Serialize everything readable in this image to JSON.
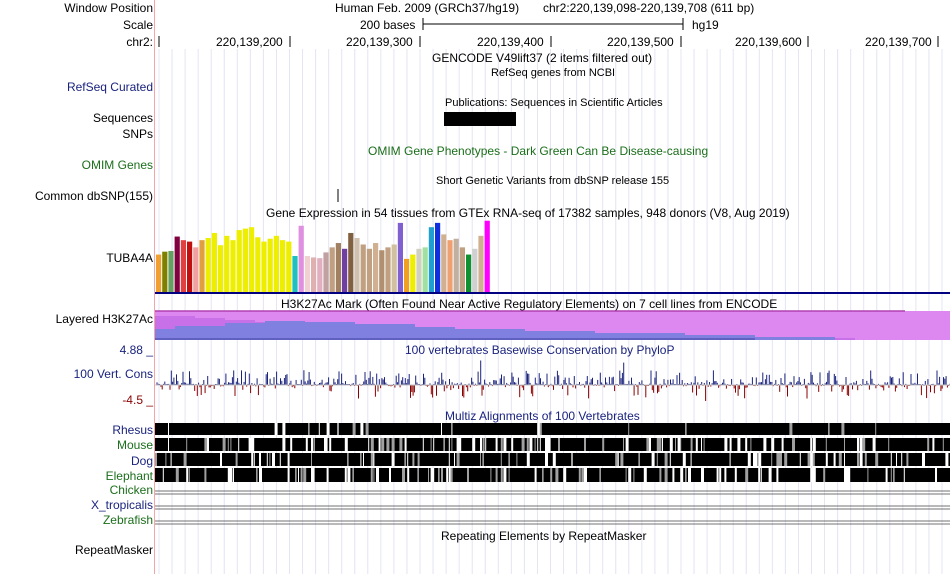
{
  "header": {
    "window_position_label": "Window Position",
    "scale_label": "Scale",
    "chr_label": "chr2:",
    "assembly_text": "Human Feb. 2009 (GRCh37/hg19)",
    "position_text": "chr2:220,139,098-220,139,708 (611 bp)",
    "scale_text": "200 bases",
    "scale_db": "hg19",
    "ruler_ticks": [
      "220,139,200",
      "220,139,300",
      "220,139,400",
      "220,139,500",
      "220,139,600",
      "220,139,700"
    ]
  },
  "tracks": {
    "gencode_title": "GENCODE V49lift37 (2 items filtered out)",
    "refseq_label": "RefSeq Curated",
    "refseq_title": "RefSeq genes from NCBI",
    "pubs_title": "Publications: Sequences in Scientific Articles",
    "sequences_label": "Sequences",
    "snps_label": "SNPs",
    "omim_label": "OMIM Genes",
    "omim_title": "OMIM Gene Phenotypes - Dark Green Can Be Disease-causing",
    "dbsnp_title": "Short Genetic Variants from dbSNP release 155",
    "dbsnp_label": "Common dbSNP(155)",
    "gtex_title": "Gene Expression in 54 tissues from GTEx RNA-seq of 17382 samples, 948 donors (V8, Aug 2019)",
    "gtex_label": "TUBA4A",
    "h3k27_label": "Layered H3K27Ac",
    "h3k27_title": "H3K27Ac Mark (Often Found Near Active Regulatory Elements) on 7 cell lines from ENCODE",
    "cons_max": "4.88 _",
    "cons_min": "-4.5 _",
    "cons_label": "100 Vert. Cons",
    "cons_title": "100 vertebrates Basewise Conservation by PhyloP",
    "multiz_title": "Multiz Alignments of 100 Vertebrates",
    "species": [
      {
        "name": "Rhesus",
        "color": "#1a237e"
      },
      {
        "name": "Mouse",
        "color": "#1b6e1b"
      },
      {
        "name": "Dog",
        "color": "#1a237e"
      },
      {
        "name": "Elephant",
        "color": "#1b6e1b"
      },
      {
        "name": "Chicken",
        "color": "#1b6e1b"
      },
      {
        "name": "X_tropicalis",
        "color": "#1a237e"
      },
      {
        "name": "Zebrafish",
        "color": "#1b6e1b"
      }
    ],
    "repeat_label": "RepeatMasker",
    "repeat_title": "Repeating Elements by RepeatMasker"
  },
  "gtex_bars": [
    {
      "color": "#f0a030",
      "value": 0.52
    },
    {
      "color": "#808000",
      "value": 0.56
    },
    {
      "color": "#66a060",
      "value": 0.57
    },
    {
      "color": "#800040",
      "value": 0.77
    },
    {
      "color": "#e04040",
      "value": 0.72
    },
    {
      "color": "#c01010",
      "value": 0.7
    },
    {
      "color": "#f0a0a0",
      "value": 0.62
    },
    {
      "color": "#e0a040",
      "value": 0.72
    },
    {
      "color": "#eeee00",
      "value": 0.75
    },
    {
      "color": "#eeee00",
      "value": 0.82
    },
    {
      "color": "#eeee00",
      "value": 0.65
    },
    {
      "color": "#eeee00",
      "value": 0.78
    },
    {
      "color": "#eeee00",
      "value": 0.72
    },
    {
      "color": "#eeee00",
      "value": 0.86
    },
    {
      "color": "#eeee00",
      "value": 0.88
    },
    {
      "color": "#eeee00",
      "value": 0.9
    },
    {
      "color": "#eeee00",
      "value": 0.76
    },
    {
      "color": "#eeee00",
      "value": 0.7
    },
    {
      "color": "#eeee00",
      "value": 0.74
    },
    {
      "color": "#eeee00",
      "value": 0.78
    },
    {
      "color": "#eeee00",
      "value": 0.72
    },
    {
      "color": "#eeee00",
      "value": 0.7
    },
    {
      "color": "#20c0c0",
      "value": 0.5
    },
    {
      "color": "#e090e0",
      "value": 0.92
    },
    {
      "color": "#f0d0d0",
      "value": 0.5
    },
    {
      "color": "#e0b0b0",
      "value": 0.48
    },
    {
      "color": "#e0b0c0",
      "value": 0.47
    },
    {
      "color": "#c0a0a0",
      "value": 0.55
    },
    {
      "color": "#c0a080",
      "value": 0.62
    },
    {
      "color": "#a08060",
      "value": 0.68
    },
    {
      "color": "#7040a0",
      "value": 0.6
    },
    {
      "color": "#806040",
      "value": 0.82
    },
    {
      "color": "#d0c0b0",
      "value": 0.75
    },
    {
      "color": "#c0a080",
      "value": 0.66
    },
    {
      "color": "#c0a080",
      "value": 0.6
    },
    {
      "color": "#d0b090",
      "value": 0.68
    },
    {
      "color": "#b09070",
      "value": 0.58
    },
    {
      "color": "#c0a080",
      "value": 0.62
    },
    {
      "color": "#d0c0a0",
      "value": 0.66
    },
    {
      "color": "#8060d0",
      "value": 0.96
    },
    {
      "color": "#f0a020",
      "value": 0.46
    },
    {
      "color": "#eeee00",
      "value": 0.52
    },
    {
      "color": "#d0d0c0",
      "value": 0.6
    },
    {
      "color": "#a0e0a0",
      "value": 0.62
    },
    {
      "color": "#20a0d0",
      "value": 0.9
    },
    {
      "color": "#1030e0",
      "value": 0.96
    },
    {
      "color": "#d0b090",
      "value": 0.8
    },
    {
      "color": "#f0a070",
      "value": 0.72
    },
    {
      "color": "#c0b0a0",
      "value": 0.74
    },
    {
      "color": "#c0a080",
      "value": 0.62
    },
    {
      "color": "#109030",
      "value": 0.52
    },
    {
      "color": "#d0d0d0",
      "value": 0.6
    },
    {
      "color": "#d0b090",
      "value": 0.78
    },
    {
      "color": "#ff00ff",
      "value": 0.99
    }
  ]
}
